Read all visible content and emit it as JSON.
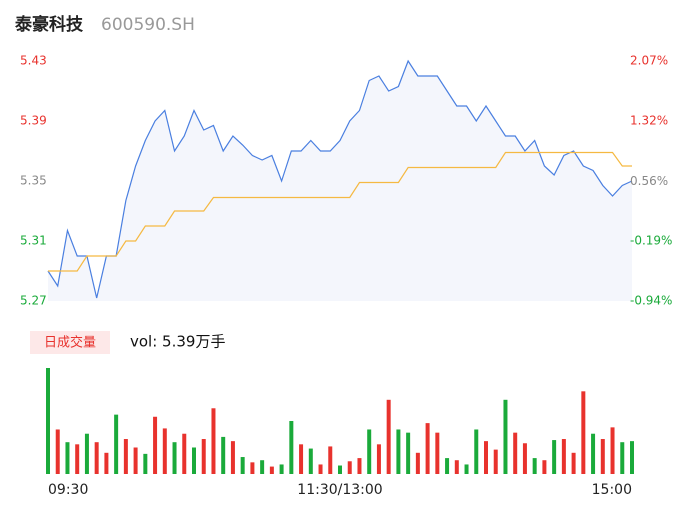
{
  "header": {
    "name": "泰豪科技",
    "code": "600590.SH"
  },
  "chart_data": [
    {
      "type": "line",
      "categories": [
        "09:30",
        null,
        null,
        null,
        null,
        null,
        null,
        null,
        null,
        null,
        null,
        null,
        null,
        null,
        null,
        null,
        null,
        null,
        null,
        null,
        null,
        null,
        null,
        null,
        null,
        null,
        null,
        null,
        null,
        null,
        "11:30/13:00",
        null,
        null,
        null,
        null,
        null,
        null,
        null,
        null,
        null,
        null,
        null,
        null,
        null,
        null,
        null,
        null,
        null,
        null,
        null,
        null,
        null,
        null,
        null,
        null,
        null,
        null,
        null,
        null,
        null,
        "15:00"
      ],
      "series": [
        {
          "color": "#4a7fe0",
          "area": true,
          "values": [
            5.29,
            5.28,
            5.317,
            5.3,
            5.3,
            5.272,
            5.3,
            5.3,
            5.337,
            5.36,
            5.377,
            5.39,
            5.397,
            5.37,
            5.38,
            5.397,
            5.384,
            5.387,
            5.37,
            5.38,
            5.374,
            5.367,
            5.364,
            5.367,
            5.35,
            5.37,
            5.37,
            5.377,
            5.37,
            5.37,
            5.377,
            5.39,
            5.397,
            5.417,
            5.42,
            5.41,
            5.413,
            5.43,
            5.42,
            5.42,
            5.42,
            5.41,
            5.4,
            5.4,
            5.39,
            5.4,
            5.39,
            5.38,
            5.38,
            5.37,
            5.377,
            5.36,
            5.354,
            5.367,
            5.37,
            5.36,
            5.357,
            5.347,
            5.34,
            5.347,
            5.35
          ]
        },
        {
          "color": "#f5b942",
          "area": false,
          "values": [
            5.29,
            5.29,
            5.29,
            5.29,
            5.3,
            5.3,
            5.3,
            5.3,
            5.31,
            5.31,
            5.32,
            5.32,
            5.32,
            5.33,
            5.33,
            5.33,
            5.33,
            5.339,
            5.339,
            5.339,
            5.339,
            5.339,
            5.339,
            5.339,
            5.339,
            5.339,
            5.339,
            5.339,
            5.339,
            5.339,
            5.339,
            5.339,
            5.349,
            5.349,
            5.349,
            5.349,
            5.349,
            5.359,
            5.359,
            5.359,
            5.359,
            5.359,
            5.359,
            5.359,
            5.359,
            5.359,
            5.359,
            5.369,
            5.369,
            5.369,
            5.369,
            5.369,
            5.369,
            5.369,
            5.369,
            5.369,
            5.369,
            5.369,
            5.369,
            5.36,
            5.36
          ]
        }
      ],
      "ylim": [
        5.27,
        5.43
      ],
      "yticks": [
        5.27,
        5.31,
        5.35,
        5.39,
        5.43
      ],
      "ytick_colors": [
        "#1aaa3a",
        "#1aaa3a",
        "#888888",
        "#e8322d",
        "#e8322d"
      ],
      "y2lim": [
        -0.94,
        2.07
      ],
      "y2ticks": [
        {
          "value": -0.94,
          "label": "-0.94%"
        },
        {
          "value": -0.19,
          "label": "-0.19%"
        },
        {
          "value": 0.56,
          "label": "0.56%"
        },
        {
          "value": 1.32,
          "label": "1.32%"
        },
        {
          "value": 2.07,
          "label": "2.07%"
        }
      ]
    },
    {
      "type": "bar",
      "title": "日成交量",
      "subtitle": "vol: 5.39万手",
      "ylim": [
        0,
        1000
      ],
      "values": [
        1000,
        420,
        300,
        280,
        380,
        300,
        200,
        560,
        330,
        250,
        190,
        540,
        430,
        300,
        380,
        250,
        330,
        620,
        350,
        310,
        160,
        110,
        130,
        70,
        90,
        500,
        280,
        240,
        90,
        260,
        80,
        120,
        150,
        420,
        280,
        700,
        420,
        390,
        200,
        480,
        390,
        150,
        130,
        90,
        420,
        310,
        230,
        700,
        390,
        290,
        150,
        130,
        320,
        330,
        200,
        780,
        380,
        330,
        440,
        300,
        310
      ],
      "colors": [
        "#1aaa3a",
        "#e8322d",
        "#1aaa3a",
        "#e8322d",
        "#1aaa3a",
        "#e8322d",
        "#e8322d",
        "#1aaa3a",
        "#e8322d",
        "#e8322d",
        "#1aaa3a",
        "#e8322d",
        "#e8322d",
        "#1aaa3a",
        "#e8322d",
        "#1aaa3a",
        "#e8322d",
        "#e8322d",
        "#1aaa3a",
        "#e8322d",
        "#1aaa3a",
        "#e8322d",
        "#1aaa3a",
        "#e8322d",
        "#1aaa3a",
        "#1aaa3a",
        "#e8322d",
        "#1aaa3a",
        "#e8322d",
        "#e8322d",
        "#1aaa3a",
        "#e8322d",
        "#e8322d",
        "#1aaa3a",
        "#e8322d",
        "#e8322d",
        "#1aaa3a",
        "#1aaa3a",
        "#e8322d",
        "#e8322d",
        "#e8322d",
        "#1aaa3a",
        "#e8322d",
        "#1aaa3a",
        "#1aaa3a",
        "#e8322d",
        "#e8322d",
        "#1aaa3a",
        "#e8322d",
        "#e8322d",
        "#1aaa3a",
        "#e8322d",
        "#1aaa3a",
        "#e8322d",
        "#e8322d",
        "#e8322d",
        "#1aaa3a",
        "#e8322d",
        "#e8322d",
        "#1aaa3a",
        "#1aaa3a"
      ]
    }
  ]
}
